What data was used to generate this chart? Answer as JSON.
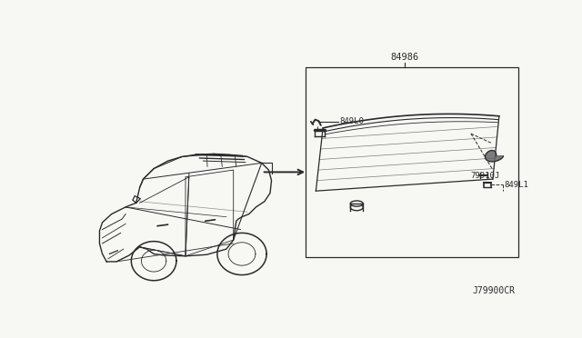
{
  "bg_color": "#f7f7f4",
  "line_color": "#2a2a2a",
  "text_color": "#2a2a2a",
  "title_bottom_right": "J79900CR",
  "part_number_box": "84986",
  "label_849L0": "849L0",
  "label_79910J": "79910J",
  "label_849L1": "849L1",
  "font_size_labels": 6.5,
  "font_size_part": 7.5,
  "font_size_footer": 7.0
}
